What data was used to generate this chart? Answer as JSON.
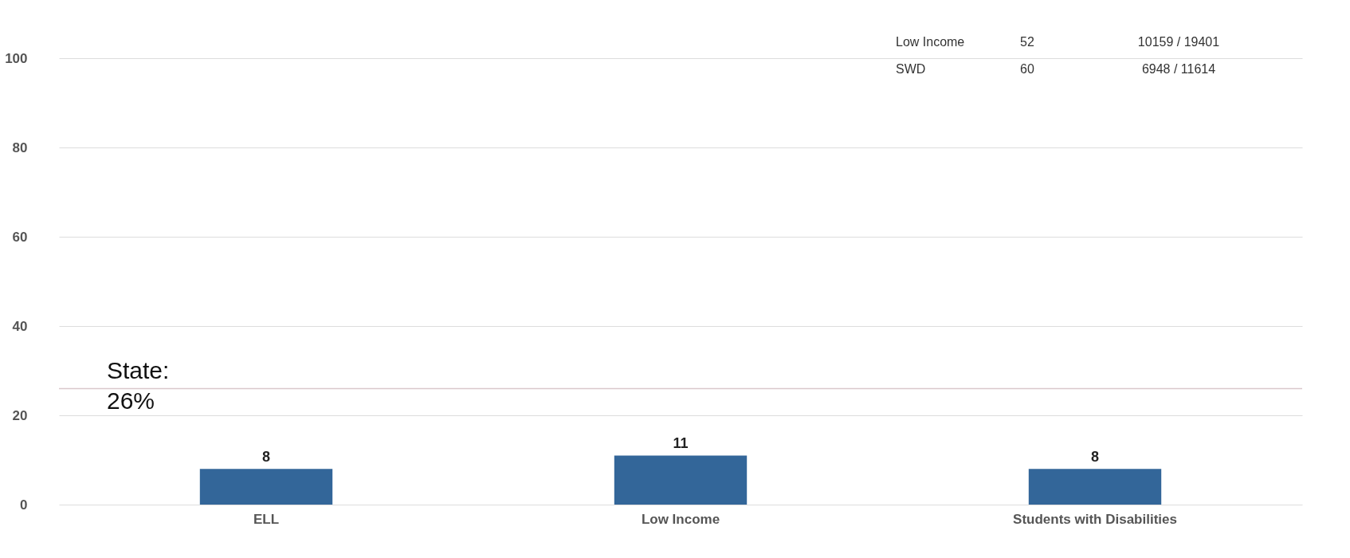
{
  "chart_data": {
    "type": "bar",
    "categories": [
      "ELL",
      "Low Income",
      "Students with Disabilities"
    ],
    "values": [
      8,
      11,
      8
    ],
    "color": "#336699",
    "ylim": [
      0,
      100
    ],
    "yticks": [
      0,
      20,
      40,
      60,
      80,
      100
    ],
    "grid": "y",
    "data_labels": true,
    "ref_lines": [
      {
        "axis": "y",
        "value": 26,
        "label": "State: 26%",
        "color": "#d9c8cc"
      }
    ],
    "annotations": [
      "Low Income",
      "52",
      "10159 / 19401",
      "SWD",
      "60",
      "6948 / 11614"
    ]
  }
}
